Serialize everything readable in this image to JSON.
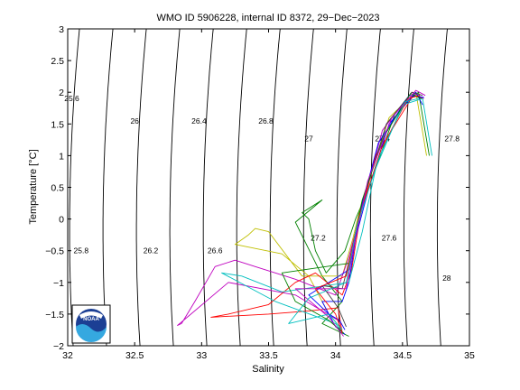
{
  "chart_data": {
    "type": "line",
    "title": "WMO ID 5906228, internal ID 8372, 29−Dec−2023",
    "xlabel": "Salinity",
    "ylabel": "Temperature [°C]",
    "xlim": [
      32,
      35
    ],
    "ylim": [
      -2,
      3
    ],
    "xticks": [
      "32",
      "32.5",
      "33",
      "33.5",
      "34",
      "34.5",
      "35"
    ],
    "yticks": [
      "−2",
      "−1.5",
      "−1",
      "−0.5",
      "0",
      "0.5",
      "1",
      "1.5",
      "2",
      "2.5",
      "3"
    ],
    "grid": false,
    "legend": "none",
    "logo_text": "NOAA",
    "density_contours": [
      {
        "label": "25.6",
        "sigma": 25.6,
        "label_at": [
          32.03,
          1.9
        ]
      },
      {
        "label": "25.8",
        "sigma": 25.8,
        "label_at": [
          32.1,
          -0.5
        ]
      },
      {
        "label": "26",
        "sigma": 26.0,
        "label_at": [
          32.5,
          1.55
        ]
      },
      {
        "label": "26.2",
        "sigma": 26.2,
        "label_at": [
          32.62,
          -0.5
        ]
      },
      {
        "label": "26.4",
        "sigma": 26.4,
        "label_at": [
          32.98,
          1.55
        ]
      },
      {
        "label": "26.6",
        "sigma": 26.6,
        "label_at": [
          33.1,
          -0.5
        ]
      },
      {
        "label": "26.8",
        "sigma": 26.8,
        "label_at": [
          33.48,
          1.55
        ]
      },
      {
        "label": "27",
        "sigma": 27.0,
        "label_at": [
          33.8,
          1.27
        ]
      },
      {
        "label": "27.2",
        "sigma": 27.2,
        "label_at": [
          33.87,
          -0.3
        ]
      },
      {
        "label": "27.4",
        "sigma": 27.4,
        "label_at": [
          34.35,
          1.27
        ]
      },
      {
        "label": "27.6",
        "sigma": 27.6,
        "label_at": [
          34.4,
          -0.3
        ]
      },
      {
        "label": "27.8",
        "sigma": 27.8,
        "label_at": [
          34.87,
          1.27
        ]
      },
      {
        "label": "28",
        "sigma": 28.0,
        "label_at": [
          34.83,
          -0.93
        ]
      }
    ],
    "series": [
      {
        "color": "#008000",
        "points": [
          [
            34.7,
            1.0
          ],
          [
            34.62,
            2.0
          ],
          [
            34.45,
            1.7
          ],
          [
            34.25,
            0.5
          ],
          [
            34.15,
            0.0
          ],
          [
            34.07,
            -0.5
          ],
          [
            33.93,
            -0.85
          ],
          [
            33.85,
            -0.5
          ],
          [
            33.8,
            0.0
          ],
          [
            33.75,
            0.1
          ],
          [
            33.9,
            0.3
          ],
          [
            33.7,
            -0.05
          ],
          [
            33.9,
            -0.9
          ],
          [
            34.05,
            -1.3
          ],
          [
            33.9,
            -1.65
          ],
          [
            34.05,
            -1.8
          ],
          [
            34.1,
            -1.85
          ]
        ]
      },
      {
        "color": "#bfbf00",
        "points": [
          [
            34.68,
            1.0
          ],
          [
            34.6,
            2.0
          ],
          [
            34.4,
            1.6
          ],
          [
            34.2,
            0.3
          ],
          [
            34.13,
            -0.3
          ],
          [
            34.05,
            -0.9
          ],
          [
            33.75,
            -0.9
          ],
          [
            33.5,
            -0.2
          ],
          [
            33.4,
            -0.15
          ],
          [
            33.35,
            -0.25
          ],
          [
            33.25,
            -0.4
          ],
          [
            33.6,
            -0.55
          ],
          [
            33.8,
            -0.9
          ],
          [
            33.95,
            -1.5
          ],
          [
            34.05,
            -1.75
          ]
        ]
      },
      {
        "color": "#bf00bf",
        "points": [
          [
            34.66,
            1.9
          ],
          [
            34.57,
            2.0
          ],
          [
            34.35,
            1.4
          ],
          [
            34.2,
            0.2
          ],
          [
            34.1,
            -0.6
          ],
          [
            34.0,
            -1.2
          ],
          [
            33.7,
            -0.95
          ],
          [
            33.4,
            -0.75
          ],
          [
            33.25,
            -0.65
          ],
          [
            33.1,
            -0.75
          ],
          [
            32.95,
            -1.3
          ],
          [
            32.85,
            -1.65
          ],
          [
            32.82,
            -1.68
          ],
          [
            33.2,
            -1.0
          ],
          [
            33.7,
            -1.2
          ],
          [
            34.02,
            -1.6
          ],
          [
            34.05,
            -1.8
          ]
        ]
      },
      {
        "color": "#ff0000",
        "points": [
          [
            34.65,
            1.9
          ],
          [
            34.58,
            1.95
          ],
          [
            34.3,
            1.0
          ],
          [
            34.18,
            0.0
          ],
          [
            34.12,
            -0.8
          ],
          [
            34.05,
            -1.2
          ],
          [
            33.85,
            -0.85
          ],
          [
            33.7,
            -1.0
          ],
          [
            33.5,
            -1.35
          ],
          [
            33.2,
            -1.5
          ],
          [
            33.07,
            -1.55
          ],
          [
            33.5,
            -1.5
          ],
          [
            33.8,
            -1.45
          ],
          [
            34.02,
            -1.4
          ],
          [
            34.05,
            -1.8
          ]
        ]
      },
      {
        "color": "#0000ff",
        "points": [
          [
            34.65,
            1.8
          ],
          [
            34.6,
            2.0
          ],
          [
            34.4,
            1.5
          ],
          [
            34.25,
            0.5
          ],
          [
            34.15,
            -0.3
          ],
          [
            34.1,
            -1.0
          ],
          [
            34.05,
            -1.3
          ],
          [
            33.9,
            -1.3
          ],
          [
            34.0,
            -1.7
          ],
          [
            34.07,
            -1.82
          ]
        ]
      },
      {
        "color": "#00bfbf",
        "points": [
          [
            34.72,
            1.0
          ],
          [
            34.65,
            1.9
          ],
          [
            34.5,
            1.8
          ],
          [
            34.3,
            0.8
          ],
          [
            34.2,
            -0.2
          ],
          [
            34.1,
            -1.0
          ],
          [
            33.6,
            -1.15
          ],
          [
            33.3,
            -0.9
          ],
          [
            33.15,
            -0.85
          ],
          [
            33.55,
            -1.3
          ],
          [
            34.0,
            -1.65
          ],
          [
            34.05,
            -1.8
          ]
        ]
      },
      {
        "color": "#404040",
        "points": [
          [
            34.65,
            1.95
          ],
          [
            34.57,
            2.0
          ],
          [
            34.38,
            1.5
          ],
          [
            34.22,
            0.4
          ],
          [
            34.12,
            -0.5
          ],
          [
            34.05,
            -1.1
          ],
          [
            33.9,
            -1.05
          ],
          [
            34.02,
            -1.4
          ],
          [
            34.08,
            -1.7
          ]
        ]
      },
      {
        "color": "#0000ff",
        "points": [
          [
            34.66,
            1.92
          ],
          [
            34.55,
            1.95
          ],
          [
            34.32,
            1.2
          ],
          [
            34.18,
            0.1
          ],
          [
            34.1,
            -0.8
          ],
          [
            33.8,
            -1.2
          ],
          [
            33.95,
            -1.5
          ],
          [
            34.03,
            -1.6
          ],
          [
            34.07,
            -1.75
          ]
        ]
      },
      {
        "color": "#008000",
        "points": [
          [
            34.64,
            1.9
          ],
          [
            34.56,
            1.98
          ],
          [
            34.36,
            1.3
          ],
          [
            34.2,
            0.3
          ],
          [
            34.1,
            -0.7
          ],
          [
            33.6,
            -0.85
          ],
          [
            33.7,
            -1.3
          ],
          [
            33.95,
            -1.6
          ],
          [
            34.06,
            -1.8
          ]
        ]
      },
      {
        "color": "#ff0000",
        "points": [
          [
            34.63,
            1.95
          ],
          [
            34.54,
            1.9
          ],
          [
            34.34,
            1.1
          ],
          [
            34.17,
            0.0
          ],
          [
            34.08,
            -0.9
          ],
          [
            33.85,
            -1.1
          ],
          [
            34.0,
            -1.5
          ],
          [
            34.05,
            -1.8
          ]
        ]
      },
      {
        "color": "#bf00bf",
        "points": [
          [
            34.67,
            1.95
          ],
          [
            34.6,
            2.03
          ],
          [
            34.42,
            1.6
          ],
          [
            34.24,
            0.6
          ],
          [
            34.14,
            -0.4
          ],
          [
            34.08,
            -1.1
          ],
          [
            33.7,
            -1.1
          ],
          [
            33.95,
            -1.55
          ],
          [
            34.06,
            -1.85
          ]
        ]
      },
      {
        "color": "#00bfbf",
        "points": [
          [
            34.62,
            1.9
          ],
          [
            34.52,
            1.85
          ],
          [
            34.33,
            1.0
          ],
          [
            34.16,
            -0.1
          ],
          [
            34.08,
            -1.0
          ],
          [
            33.8,
            -1.25
          ],
          [
            33.65,
            -1.65
          ],
          [
            33.95,
            -1.5
          ],
          [
            34.05,
            -1.75
          ]
        ]
      }
    ]
  }
}
